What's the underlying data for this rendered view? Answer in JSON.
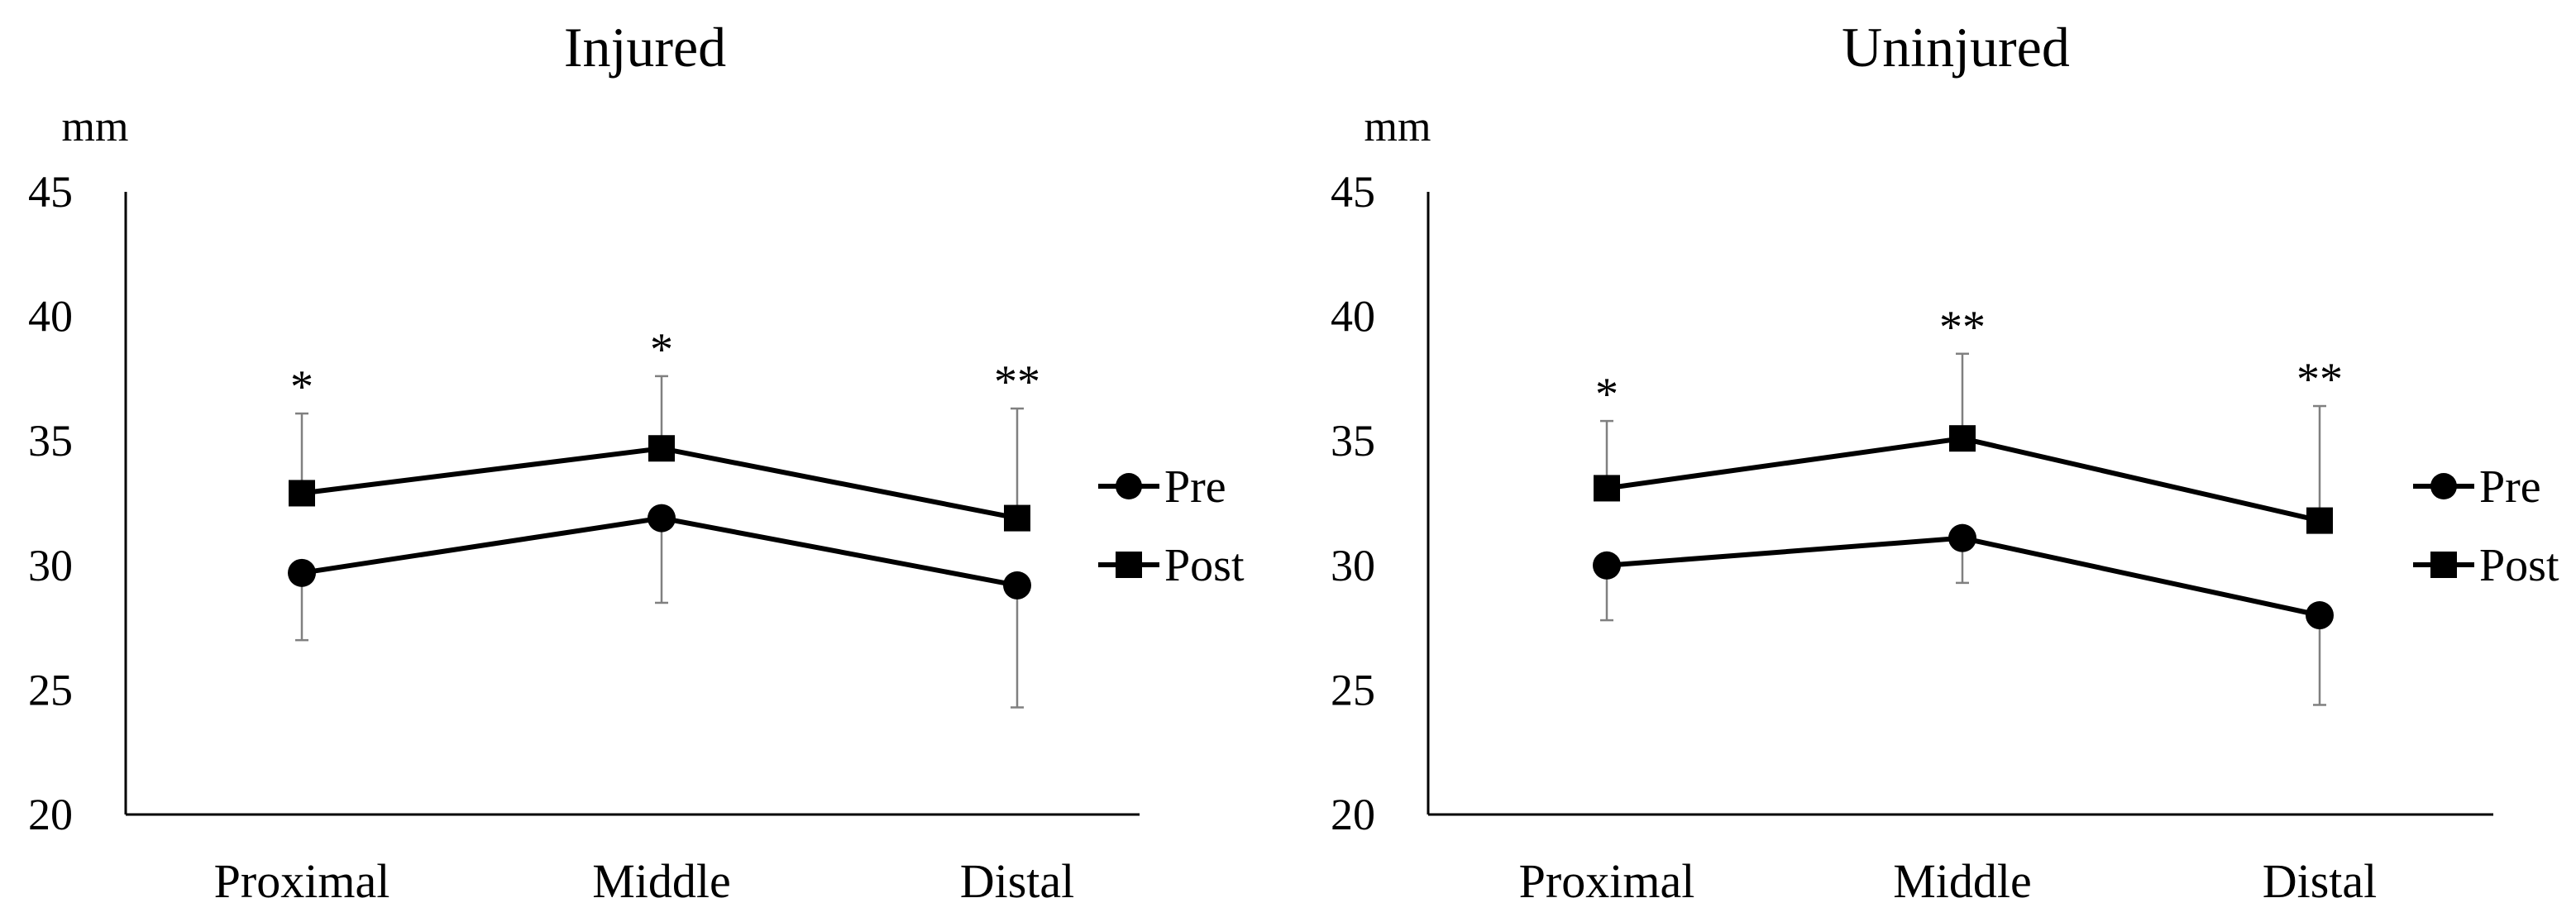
{
  "chart_data": [
    {
      "type": "line",
      "title": "Injured",
      "ylabel": "mm",
      "xlabel": "",
      "ylim": [
        20,
        45
      ],
      "yticks": [
        "45",
        "40",
        "35",
        "30",
        "25",
        "20"
      ],
      "categories": [
        "Proximal",
        "Middle",
        "Distal"
      ],
      "series": [
        {
          "name": "Pre",
          "marker": "circle",
          "values": [
            29.7,
            31.9,
            29.2
          ],
          "error_low": [
            2.7,
            3.4,
            4.9
          ]
        },
        {
          "name": "Post",
          "marker": "square",
          "values": [
            32.9,
            34.7,
            31.9
          ],
          "error_high": [
            3.2,
            2.9,
            4.4
          ]
        }
      ],
      "annotations": [
        "*",
        "*",
        "**"
      ],
      "legend": "right",
      "grid": false
    },
    {
      "type": "line",
      "title": "Uninjured",
      "ylabel": "mm",
      "xlabel": "",
      "ylim": [
        20,
        45
      ],
      "yticks": [
        "45",
        "40",
        "35",
        "30",
        "25",
        "20"
      ],
      "categories": [
        "Proximal",
        "Middle",
        "Distal"
      ],
      "series": [
        {
          "name": "Pre",
          "marker": "circle",
          "values": [
            30.0,
            31.1,
            28.0
          ],
          "error_low": [
            2.2,
            1.8,
            3.6
          ]
        },
        {
          "name": "Post",
          "marker": "square",
          "values": [
            33.1,
            35.1,
            31.8
          ],
          "error_high": [
            2.7,
            3.4,
            4.6
          ]
        }
      ],
      "annotations": [
        "*",
        "**",
        "**"
      ],
      "legend": "right",
      "grid": false
    }
  ]
}
